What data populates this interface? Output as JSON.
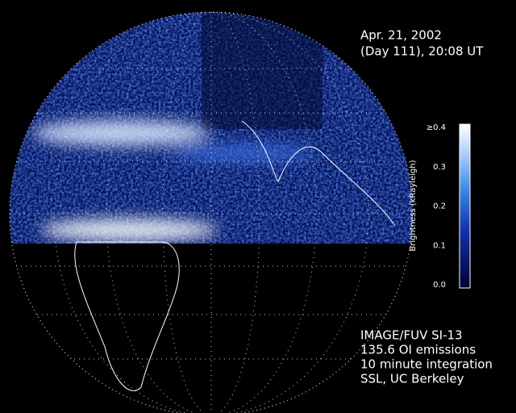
{
  "header": {
    "date": "Apr. 21, 2002",
    "day_time": "(Day 111), 20:08 UT"
  },
  "colorbar": {
    "title": "Brightness (kRayleigh)",
    "tick_labels": [
      "≥0.4",
      "0.3",
      "0.2",
      "0.1",
      "0.0"
    ]
  },
  "footer": {
    "lines": [
      "IMAGE/FUV SI-13",
      "135.6 OI emissions",
      "10 minute integration",
      "SSL, UC Berkeley"
    ]
  }
}
